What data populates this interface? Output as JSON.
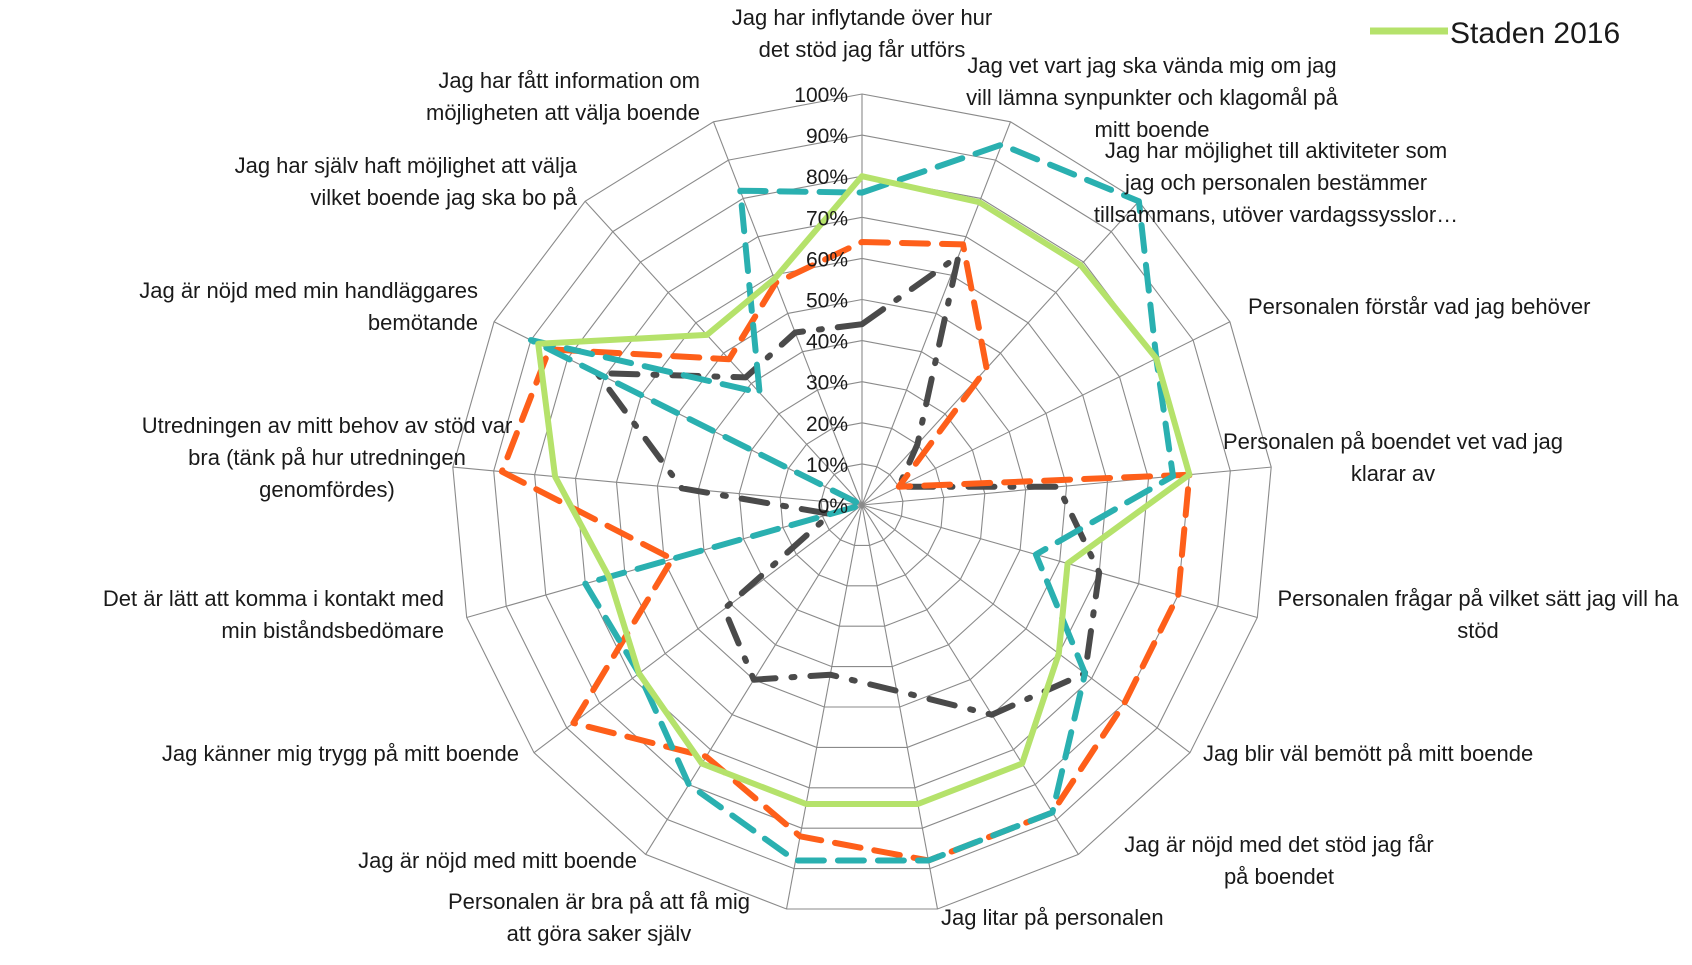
{
  "chart_data": {
    "type": "radar",
    "title": "",
    "rmin": 0,
    "rmax": 100,
    "ticks": [
      "0%",
      "10%",
      "20%",
      "30%",
      "40%",
      "50%",
      "60%",
      "70%",
      "80%",
      "90%",
      "100%"
    ],
    "categories": [
      "Jag har inflytande över hur det stöd jag får utförs",
      "Jag vet vart jag ska vända mig om jag vill lämna synpunkter och klagomål på mitt boende",
      "Jag har möjlighet till aktiviteter som jag och personalen bestämmer tillsammans, utöver vardagssysslor…",
      "Personalen förstår vad jag behöver",
      "Personalen på boendet vet vad jag klarar av",
      "Personalen frågar på vilket sätt jag vill ha stöd",
      "Jag blir väl bemött på mitt boende",
      "Jag är nöjd med det stöd jag får på boendet",
      "Jag litar på personalen",
      "Personalen är bra på att få mig att göra saker själv",
      "Jag är nöjd med mitt boende",
      "Jag känner mig trygg på mitt boende",
      "Det är lätt att komma i kontakt med min biståndsbedömare",
      "Utredningen av mitt behov av stöd var bra (tänk på hur utredningen genomfördes)",
      "Jag är nöjd med min handläggares bemötande",
      "Jag har själv haft möjlighet att välja vilket boende jag ska bo på",
      "Jag har fått information om möjligheten att välja boende"
    ],
    "series": [
      {
        "name": "Staden 2016",
        "color": "#b5e26b",
        "dash": "solid",
        "values": [
          80,
          79,
          79,
          80,
          80,
          52,
          60,
          74,
          74,
          74,
          74,
          68,
          64,
          75,
          88,
          56,
          59
        ]
      },
      {
        "name": "",
        "color": "#2ab0b0",
        "dash": "dash",
        "values": [
          76,
          94,
          100,
          80,
          76,
          44,
          68,
          88,
          88,
          88,
          80,
          68,
          70,
          0,
          90,
          37,
          82
        ]
      },
      {
        "name": "",
        "color": "#fe5f1a",
        "dash": "dash",
        "values": [
          64,
          68,
          45,
          10,
          80,
          80,
          80,
          88,
          88,
          82,
          72,
          88,
          48,
          88,
          85,
          48,
          58
        ]
      },
      {
        "name": "",
        "color": "#4a4a4a",
        "dash": "dashdot",
        "values": [
          44,
          65,
          20,
          10,
          48,
          60,
          68,
          60,
          46,
          42,
          50,
          42,
          8,
          44,
          72,
          42,
          45
        ]
      }
    ],
    "legend": {
      "position": "top-right",
      "entries": [
        "Staden 2016"
      ]
    },
    "grid": true
  }
}
